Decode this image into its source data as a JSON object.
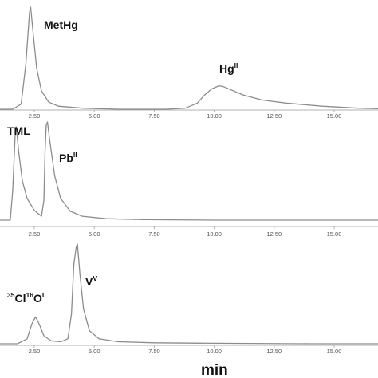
{
  "chart_data": [
    {
      "type": "line",
      "xlim": [
        0.5,
        17.0
      ],
      "x_ticks": [
        "2.50",
        "5.00",
        "7.50",
        "10.00",
        "12.50",
        "15.00"
      ],
      "peaks": [
        {
          "label": "MetHg",
          "x": 2.35
        },
        {
          "label": "Hg",
          "sup": "II",
          "x": 10.3
        }
      ],
      "series": [
        {
          "x": [
            0.5,
            1.6,
            1.95,
            2.15,
            2.3,
            2.35,
            2.45,
            2.6,
            2.8,
            3.1,
            3.5,
            4.5,
            6.0,
            8.0,
            8.8,
            9.3,
            9.6,
            9.9,
            10.2,
            10.4,
            10.7,
            11.2,
            12.0,
            13.0,
            14.5,
            16.0,
            17.0
          ],
          "y": [
            0.0,
            0.0,
            0.05,
            0.45,
            0.95,
            1.0,
            0.75,
            0.4,
            0.18,
            0.07,
            0.03,
            0.01,
            0.0,
            0.0,
            0.01,
            0.06,
            0.14,
            0.2,
            0.23,
            0.22,
            0.19,
            0.14,
            0.09,
            0.06,
            0.03,
            0.01,
            0.005
          ]
        }
      ]
    },
    {
      "type": "line",
      "xlim": [
        0.5,
        17.0
      ],
      "x_ticks": [
        "2.50",
        "5.00",
        "7.50",
        "10.00",
        "12.50",
        "15.00"
      ],
      "peaks": [
        {
          "label": "TML",
          "x": 1.75
        },
        {
          "label": "Pb",
          "sup": "II",
          "x": 3.05
        }
      ],
      "series": [
        {
          "x": [
            0.5,
            1.5,
            1.6,
            1.7,
            1.75,
            1.85,
            2.0,
            2.2,
            2.5,
            2.8,
            2.9,
            2.95,
            3.0,
            3.05,
            3.15,
            3.35,
            3.6,
            4.0,
            4.5,
            5.5,
            7.0,
            10.0,
            14.0,
            17.0
          ],
          "y": [
            0.0,
            0.0,
            0.3,
            0.85,
            0.95,
            0.7,
            0.4,
            0.22,
            0.1,
            0.04,
            0.2,
            0.7,
            0.97,
            1.0,
            0.8,
            0.45,
            0.22,
            0.09,
            0.04,
            0.015,
            0.005,
            0.0,
            0.0,
            0.0
          ]
        }
      ]
    },
    {
      "type": "line",
      "xlim": [
        0.5,
        17.0
      ],
      "x_ticks": [
        "2.50",
        "5.00",
        "7.50",
        "10.00",
        "12.50",
        "15.00"
      ],
      "peaks": [
        {
          "label": "V",
          "sup": "V",
          "x": 4.3
        },
        {
          "prefix_sup": "35",
          "label": "Cl",
          "mid_sup": "16",
          "label2": "O",
          "sup": "I",
          "x": 2.55
        }
      ],
      "series": [
        {
          "x": [
            0.5,
            1.8,
            2.2,
            2.4,
            2.55,
            2.7,
            2.9,
            3.2,
            3.6,
            3.9,
            4.05,
            4.15,
            4.25,
            4.3,
            4.4,
            4.55,
            4.8,
            5.2,
            6.0,
            7.5,
            10.0,
            14.0,
            17.0
          ],
          "y": [
            0.0,
            0.0,
            0.05,
            0.2,
            0.27,
            0.2,
            0.08,
            0.03,
            0.02,
            0.05,
            0.3,
            0.8,
            0.97,
            1.0,
            0.7,
            0.35,
            0.13,
            0.05,
            0.02,
            0.01,
            0.005,
            0.0,
            0.0
          ]
        }
      ]
    }
  ],
  "xlabel": "min"
}
